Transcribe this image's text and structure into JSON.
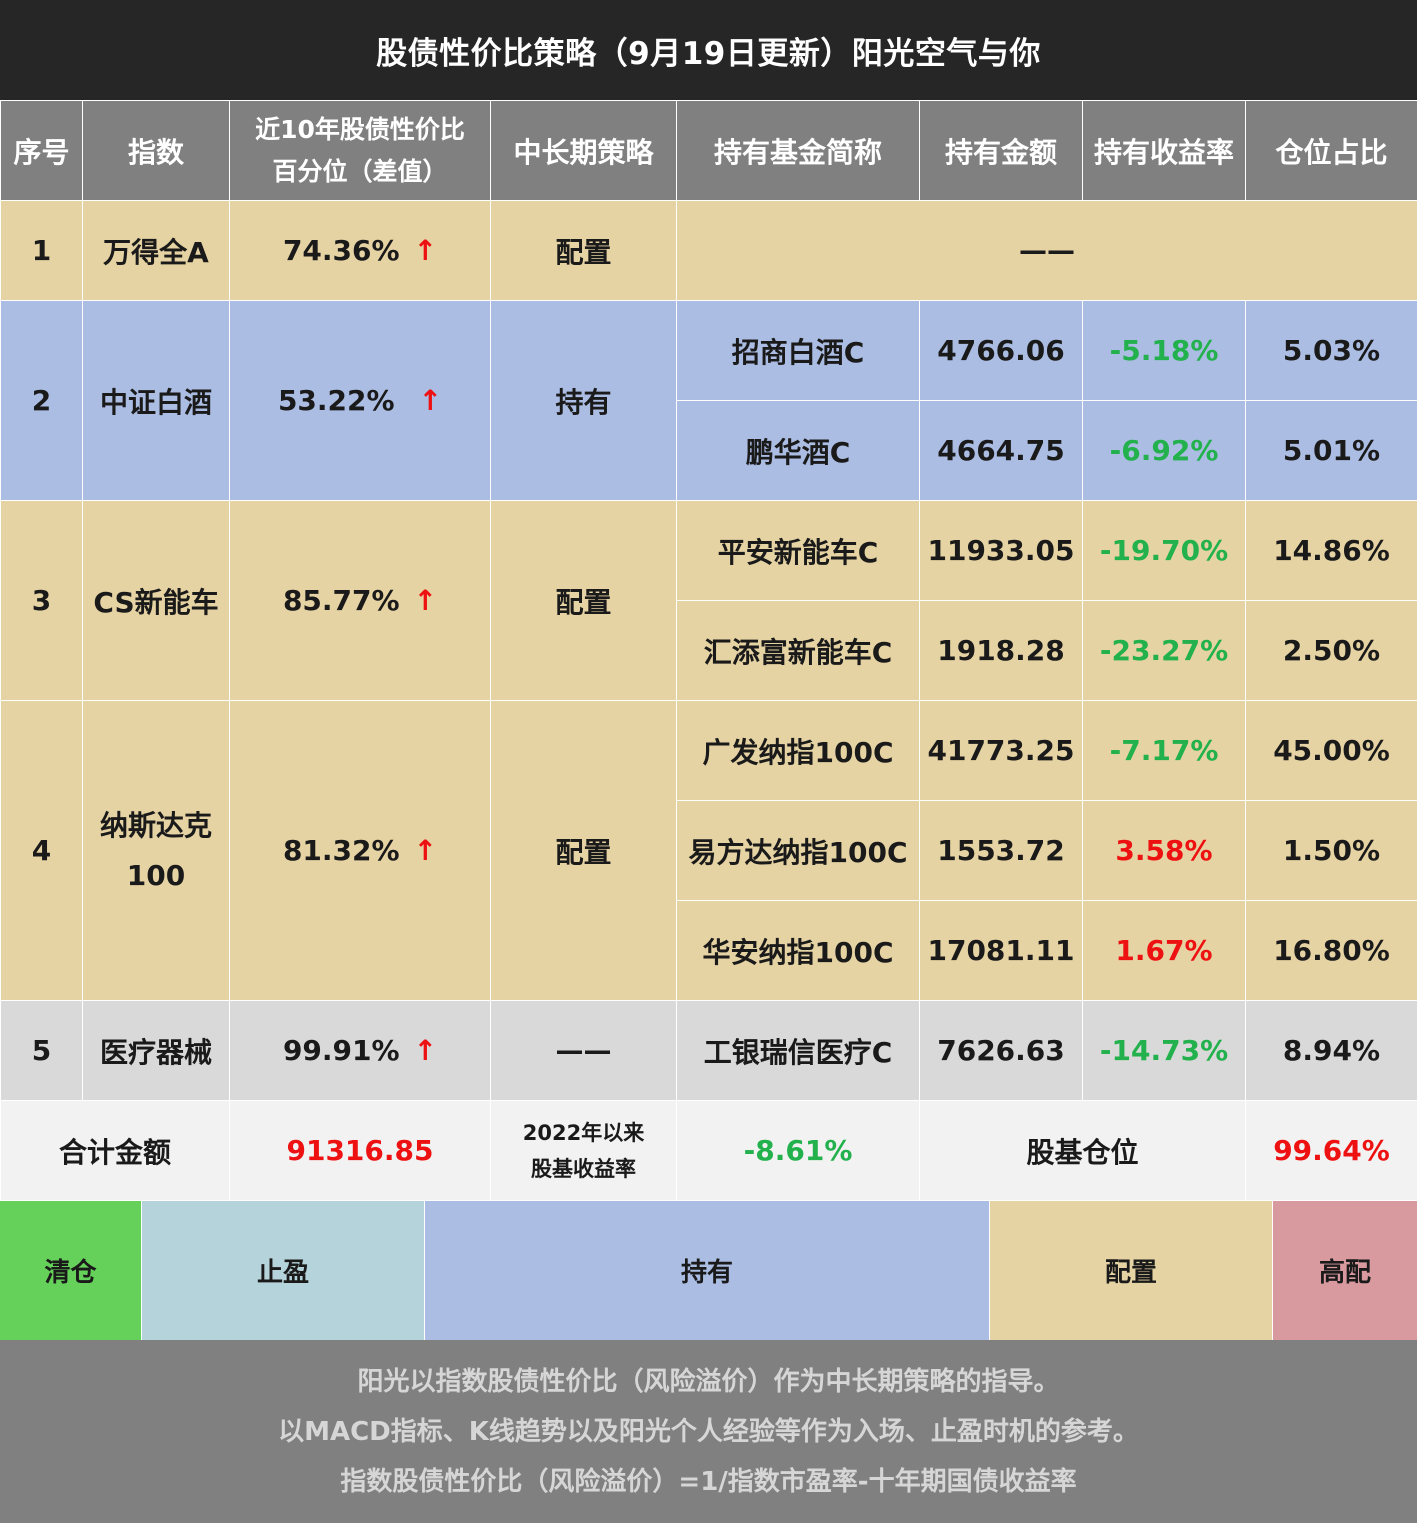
{
  "title": "股债性价比策略（9月19日更新）阳光空气与你",
  "headers": {
    "index_no": "序号",
    "index_name": "指数",
    "percentile_line1": "近10年股债性价比",
    "percentile_line2": "百分位（差值）",
    "strategy": "中长期策略",
    "fund_name": "持有基金简称",
    "amount": "持有金额",
    "return_rate": "持有收益率",
    "weight": "仓位占比"
  },
  "rows": [
    {
      "no": "1",
      "index": "万得全A",
      "percentile": "74.36%",
      "arrow": "↑",
      "strategy": "配置",
      "empty_funds": "——"
    },
    {
      "no": "2",
      "index": "中证白酒",
      "percentile": "53.22%",
      "arrow": "↑",
      "strategy": "持有",
      "funds": [
        {
          "name": "招商白酒C",
          "amount": "4766.06",
          "return": "-5.18%",
          "weight": "5.03%"
        },
        {
          "name": "鹏华酒C",
          "amount": "4664.75",
          "return": "-6.92%",
          "weight": "5.01%"
        }
      ]
    },
    {
      "no": "3",
      "index": "CS新能车",
      "percentile": "85.77%",
      "arrow": "↑",
      "strategy": "配置",
      "funds": [
        {
          "name": "平安新能车C",
          "amount": "11933.05",
          "return": "-19.70%",
          "weight": "14.86%"
        },
        {
          "name": "汇添富新能车C",
          "amount": "1918.28",
          "return": "-23.27%",
          "weight": "2.50%"
        }
      ]
    },
    {
      "no": "4",
      "index_line1": "纳斯达克",
      "index_line2": "100",
      "percentile": "81.32%",
      "arrow": "↑",
      "strategy": "配置",
      "funds": [
        {
          "name": "广发纳指100C",
          "amount": "41773.25",
          "return": "-7.17%",
          "weight": "45.00%"
        },
        {
          "name": "易方达纳指100C",
          "amount": "1553.72",
          "return": "3.58%",
          "weight": "1.50%"
        },
        {
          "name": "华安纳指100C",
          "amount": "17081.11",
          "return": "1.67%",
          "weight": "16.80%"
        }
      ]
    },
    {
      "no": "5",
      "index": "医疗器械",
      "percentile": "99.91%",
      "arrow": "↑",
      "strategy": "——",
      "funds": [
        {
          "name": "工银瑞信医疗C",
          "amount": "7626.63",
          "return": "-14.73%",
          "weight": "8.94%"
        }
      ]
    }
  ],
  "totals": {
    "label": "合计金额",
    "amount": "91316.85",
    "since_line1": "2022年以来",
    "since_line2": "股基收益率",
    "since_value": "-8.61%",
    "position_label": "股基仓位",
    "position_value": "99.64%"
  },
  "legend": {
    "clear": "清仓",
    "take_profit": "止盈",
    "hold": "持有",
    "allocate": "配置",
    "high_allocate": "高配"
  },
  "notes": [
    "阳光以指数股债性价比（风险溢价）作为中长期策略的指导。",
    "以MACD指标、K线趋势以及阳光个人经验等作为入场、止盈时机的参考。",
    "指数股债性价比（风险溢价）=1/指数市盈率-十年期国债收益率"
  ],
  "colors": {
    "title_bg": "#262626",
    "header_bg": "#808080",
    "tan": "#e6d3a3",
    "blue": "#abbde3",
    "gray": "#d9d9d9",
    "green": "#66d15a",
    "teal": "#b5d3da",
    "pink": "#d89a9f",
    "negative_text": "#22b14c",
    "positive_text": "#ee1111"
  }
}
